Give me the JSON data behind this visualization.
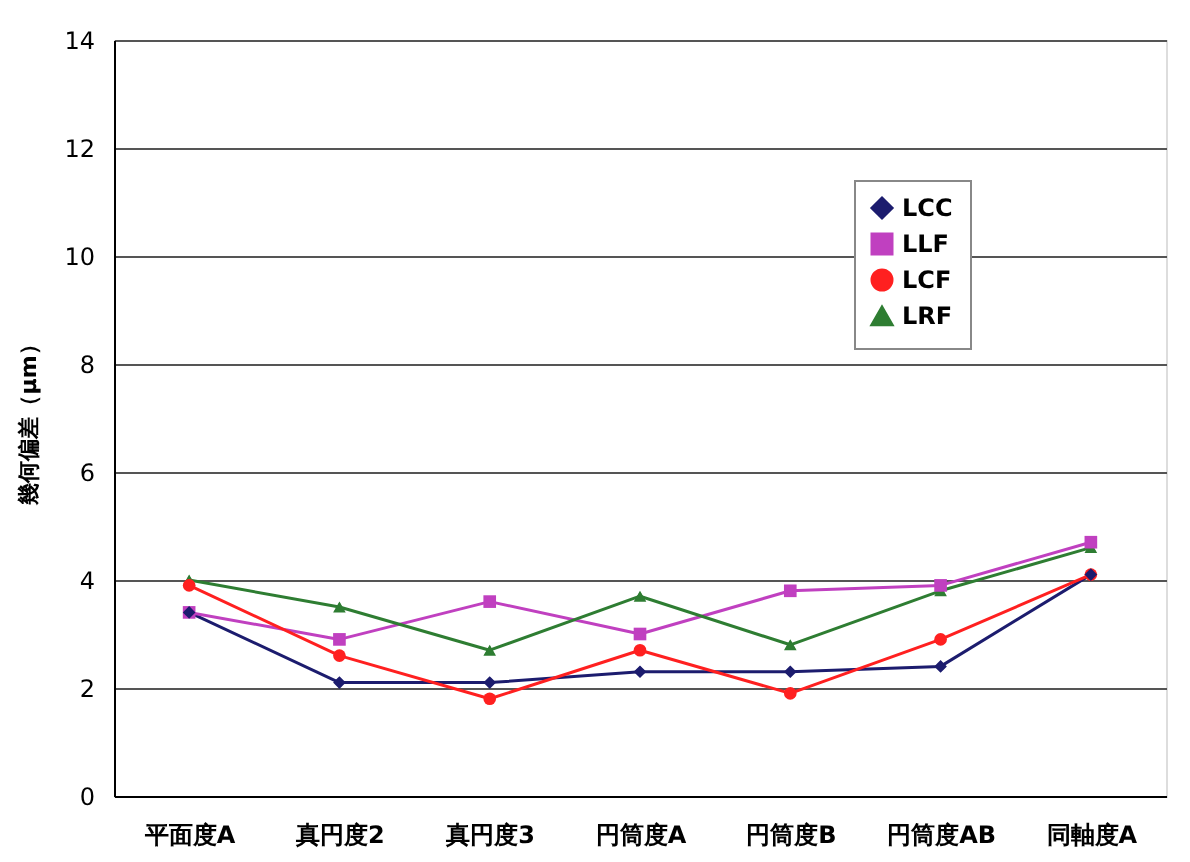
{
  "chart_data": {
    "type": "line",
    "ylabel": "幾何偏差（μm）",
    "categories": [
      "平面度A",
      "真円度2",
      "真円度3",
      "円筒度A",
      "円筒度B",
      "円筒度AB",
      "同軸度A"
    ],
    "series": [
      {
        "name": "LCC",
        "color": "#1c1c6e",
        "marker": "diamond",
        "values": [
          3.4,
          2.1,
          2.1,
          2.3,
          2.3,
          2.4,
          4.1
        ]
      },
      {
        "name": "LLF",
        "color": "#c040c0",
        "marker": "square",
        "values": [
          3.4,
          2.9,
          3.6,
          3.0,
          3.8,
          3.9,
          4.7
        ]
      },
      {
        "name": "LCF",
        "color": "#ff2020",
        "marker": "circle",
        "values": [
          3.9,
          2.6,
          1.8,
          2.7,
          1.9,
          2.9,
          4.1
        ]
      },
      {
        "name": "LRF",
        "color": "#2e7d32",
        "marker": "triangle",
        "values": [
          4.0,
          3.5,
          2.7,
          3.7,
          2.8,
          3.8,
          4.6
        ]
      }
    ],
    "ylim": [
      0,
      14
    ],
    "yticks": [
      0,
      2,
      4,
      6,
      8,
      10,
      12,
      14
    ],
    "grid": "y",
    "legend": "top right",
    "line_style": "solid"
  }
}
